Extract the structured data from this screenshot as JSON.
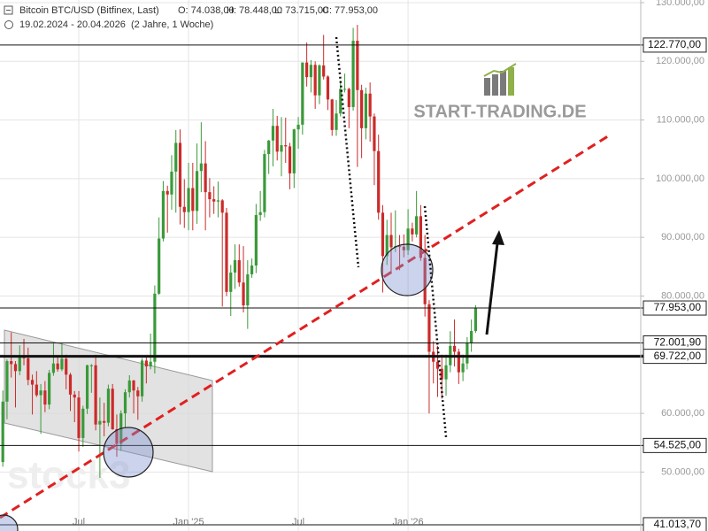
{
  "chart_data": {
    "type": "candlestick",
    "title": "Bitcoin BTC/USD (Bitfinex, Last)",
    "header_stats": [
      "O: 74.038,00",
      "H: 78.448,00",
      "L: 73.715,00",
      "C: 77.953,00"
    ],
    "subtitle": "19.02.2024 - 20.04.2026  (2 Jahre, 1 Woche)",
    "categories": [
      null,
      null,
      null,
      null,
      null,
      null,
      null,
      null,
      null,
      null,
      null,
      null,
      null,
      null,
      null,
      null,
      null,
      null,
      null,
      "Jul",
      null,
      null,
      null,
      null,
      null,
      null,
      null,
      null,
      null,
      null,
      null,
      null,
      null,
      null,
      null,
      null,
      null,
      null,
      null,
      null,
      null,
      null,
      null,
      null,
      null,
      "Jan '25",
      null,
      null,
      null,
      null,
      null,
      null,
      null,
      null,
      null,
      null,
      null,
      null,
      null,
      null,
      null,
      null,
      null,
      null,
      null,
      null,
      null,
      null,
      null,
      null,
      null,
      "Jul",
      null,
      null,
      null,
      null,
      null,
      null,
      null,
      null,
      null,
      null,
      null,
      null,
      null,
      null,
      null,
      null,
      null,
      null,
      null,
      null,
      null,
      null,
      null,
      null,
      null,
      "Jan '26",
      null,
      null,
      null,
      null,
      null,
      null,
      null,
      null,
      null,
      null,
      null,
      null,
      null,
      null,
      null,
      null
    ],
    "open": [
      52000,
      51700,
      62000,
      68900,
      68400,
      67200,
      69700,
      69400,
      65700,
      64900,
      63100,
      63900,
      61500,
      66900,
      68500,
      67500,
      69300,
      66600,
      63200,
      62700,
      55800,
      60800,
      68200,
      68200,
      58100,
      58700,
      58400,
      64200,
      57300,
      54800,
      60000,
      63600,
      65600,
      63900,
      62900,
      69000,
      68000,
      68800,
      80400,
      89800,
      97900,
      97300,
      101200,
      106100,
      95200,
      94300,
      98400,
      94500,
      101300,
      102600,
      97700,
      96500,
      96100,
      96300,
      94200,
      80700,
      84000,
      86100,
      82300,
      78400,
      83700,
      85200,
      93800,
      94300,
      104200,
      106500,
      109000,
      104600,
      105700,
      105500,
      100900,
      108400,
      109200,
      119800,
      117300,
      119400,
      114200,
      119300,
      117400,
      113500,
      108300,
      111100,
      115300,
      115300,
      112200,
      123500,
      115100,
      108600,
      114500,
      110600,
      104700,
      94200,
      86800,
      90400,
      88300,
      88500,
      88400,
      87800,
      91500,
      90500,
      93600,
      86500,
      78600,
      70500,
      68800,
      67600,
      65800,
      68200,
      71500,
      70500,
      67000,
      68500,
      72000,
      74038
    ],
    "high": [
      53000,
      63900,
      69200,
      73800,
      68900,
      71600,
      72700,
      71200,
      66600,
      67200,
      65000,
      65500,
      67400,
      71900,
      69500,
      72000,
      70000,
      66900,
      63800,
      63800,
      61300,
      68300,
      68400,
      70000,
      62700,
      61800,
      64900,
      65000,
      59800,
      60500,
      64100,
      66500,
      65700,
      64500,
      69400,
      69500,
      73600,
      81800,
      93400,
      99600,
      98800,
      104000,
      108300,
      108400,
      99900,
      102700,
      102700,
      106000,
      109600,
      106400,
      100100,
      98700,
      99500,
      96500,
      95000,
      85300,
      88800,
      88800,
      88500,
      86100,
      86400,
      95700,
      97900,
      104900,
      106600,
      111900,
      110700,
      110500,
      110400,
      106100,
      108500,
      110500,
      119800,
      123200,
      120200,
      120000,
      119500,
      124500,
      117600,
      113600,
      113400,
      116700,
      117900,
      115500,
      125700,
      126200,
      116000,
      115500,
      116400,
      111100,
      107500,
      95500,
      93000,
      94200,
      94600,
      90400,
      90500,
      94800,
      92500,
      97900,
      95500,
      90400,
      79300,
      72300,
      71500,
      70000,
      70000,
      74000,
      76000,
      71000,
      70000,
      73000,
      76000,
      78448
    ],
    "low": [
      50500,
      50900,
      59000,
      66100,
      61000,
      66500,
      68200,
      64800,
      59800,
      62800,
      56500,
      60200,
      60700,
      66400,
      67100,
      67200,
      64100,
      60400,
      58500,
      53500,
      54300,
      59900,
      63500,
      57100,
      49000,
      56100,
      57800,
      57200,
      52600,
      53600,
      57500,
      62700,
      60000,
      58900,
      62000,
      65100,
      67500,
      66800,
      80200,
      89300,
      90800,
      94700,
      94200,
      92200,
      91600,
      91200,
      91200,
      92300,
      97700,
      91200,
      93400,
      94000,
      93400,
      78200,
      80000,
      76600,
      81200,
      81600,
      77200,
      74400,
      83100,
      83900,
      92800,
      93400,
      100800,
      102100,
      103100,
      100400,
      102700,
      98200,
      98400,
      105100,
      107500,
      115700,
      114700,
      111900,
      112700,
      116900,
      111700,
      107300,
      107300,
      110600,
      114700,
      108600,
      111600,
      102000,
      103500,
      106700,
      106300,
      98900,
      93000,
      80600,
      85300,
      83800,
      87500,
      84400,
      86600,
      87000,
      89300,
      90000,
      86000,
      76500,
      60000,
      65100,
      62800,
      62500,
      63000,
      67000,
      68000,
      65000,
      65500,
      67500,
      70500,
      73715
    ],
    "close": [
      51700,
      62000,
      68900,
      68400,
      67200,
      69700,
      69400,
      65700,
      64900,
      63100,
      63900,
      61500,
      66900,
      68500,
      67500,
      69300,
      66600,
      63200,
      62700,
      55800,
      60800,
      68200,
      68200,
      58100,
      58700,
      58400,
      64200,
      57300,
      54800,
      60000,
      63600,
      65600,
      63900,
      62900,
      69000,
      68000,
      68800,
      80400,
      89800,
      97900,
      97300,
      101200,
      106100,
      95200,
      94300,
      98400,
      94500,
      101300,
      102600,
      97700,
      96500,
      96100,
      96300,
      94200,
      80700,
      84000,
      86100,
      82300,
      78400,
      83700,
      85200,
      93800,
      94300,
      104200,
      106500,
      109000,
      104600,
      105700,
      105500,
      100900,
      108400,
      109200,
      119800,
      117300,
      119400,
      114200,
      119300,
      117400,
      113500,
      108300,
      111100,
      115300,
      115300,
      112200,
      123500,
      115100,
      108600,
      114500,
      110600,
      104700,
      94200,
      86800,
      90400,
      88300,
      88500,
      88400,
      87800,
      91500,
      90500,
      93600,
      86500,
      78600,
      70500,
      68800,
      67600,
      65800,
      68200,
      71500,
      70500,
      67000,
      68500,
      72000,
      74038,
      77953
    ],
    "up_color": "#3a9a3a",
    "down_color": "#cc2a2a",
    "ylim": [
      39950,
      130450
    ],
    "yticks": [
      {
        "value": 50000,
        "label": "50.000,00"
      },
      {
        "value": 60000,
        "label": "60.000,00"
      },
      {
        "value": 70000,
        "label": "70.000,00"
      },
      {
        "value": 80000,
        "label": "80.000,00"
      },
      {
        "value": 90000,
        "label": "90.000,00"
      },
      {
        "value": 100000,
        "label": "100.000,00"
      },
      {
        "value": 110000,
        "label": "110.000,00"
      },
      {
        "value": 120000,
        "label": "120.000,00"
      },
      {
        "value": 130000,
        "label": "130.000,00"
      }
    ],
    "levels": [
      {
        "value": 122770,
        "label": "122.770,00"
      },
      {
        "value": 77953,
        "label": "77.953,00"
      },
      {
        "value": 72001.9,
        "label": "72.001,90"
      },
      {
        "value": 69722,
        "label": "69.722,00"
      },
      {
        "value": 54525,
        "label": "54.525,00"
      },
      {
        "value": 41013.7,
        "label": "41.013,70"
      }
    ],
    "level_widths": [
      1,
      1,
      1,
      3,
      1,
      1
    ],
    "grid": true
  },
  "logo": "START-TRADING.DE",
  "watermark": "stock3"
}
